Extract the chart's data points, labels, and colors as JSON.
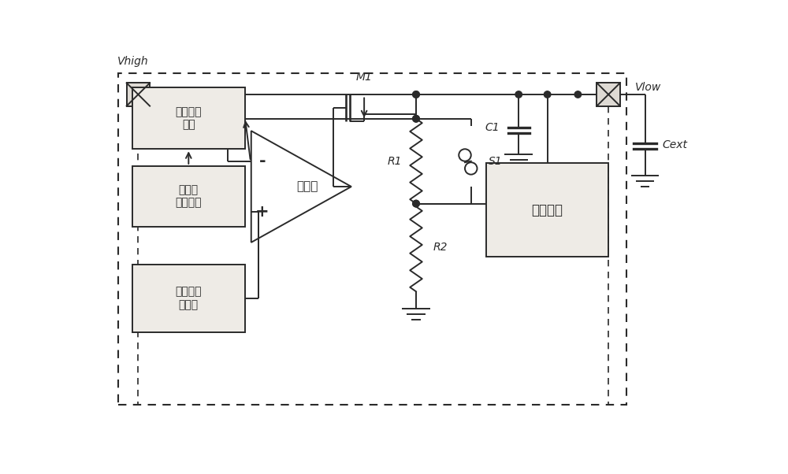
{
  "bg": "#ffffff",
  "lc": "#2a2a2a",
  "box_bg": "#eeebe6",
  "lw": 1.4,
  "labels": {
    "vhigh": "Vhigh",
    "vlow": "Vlow",
    "m1": "M1",
    "r1": "R1",
    "r2": "R2",
    "c1": "C1",
    "cext": "Cext",
    "s1": "S1",
    "level_detect": "电平检测\n电路",
    "clock_seq": "时钟及\n时序电路",
    "amplifier": "放大器",
    "vref": "内置电压\n基准源",
    "core": "内核电路"
  }
}
